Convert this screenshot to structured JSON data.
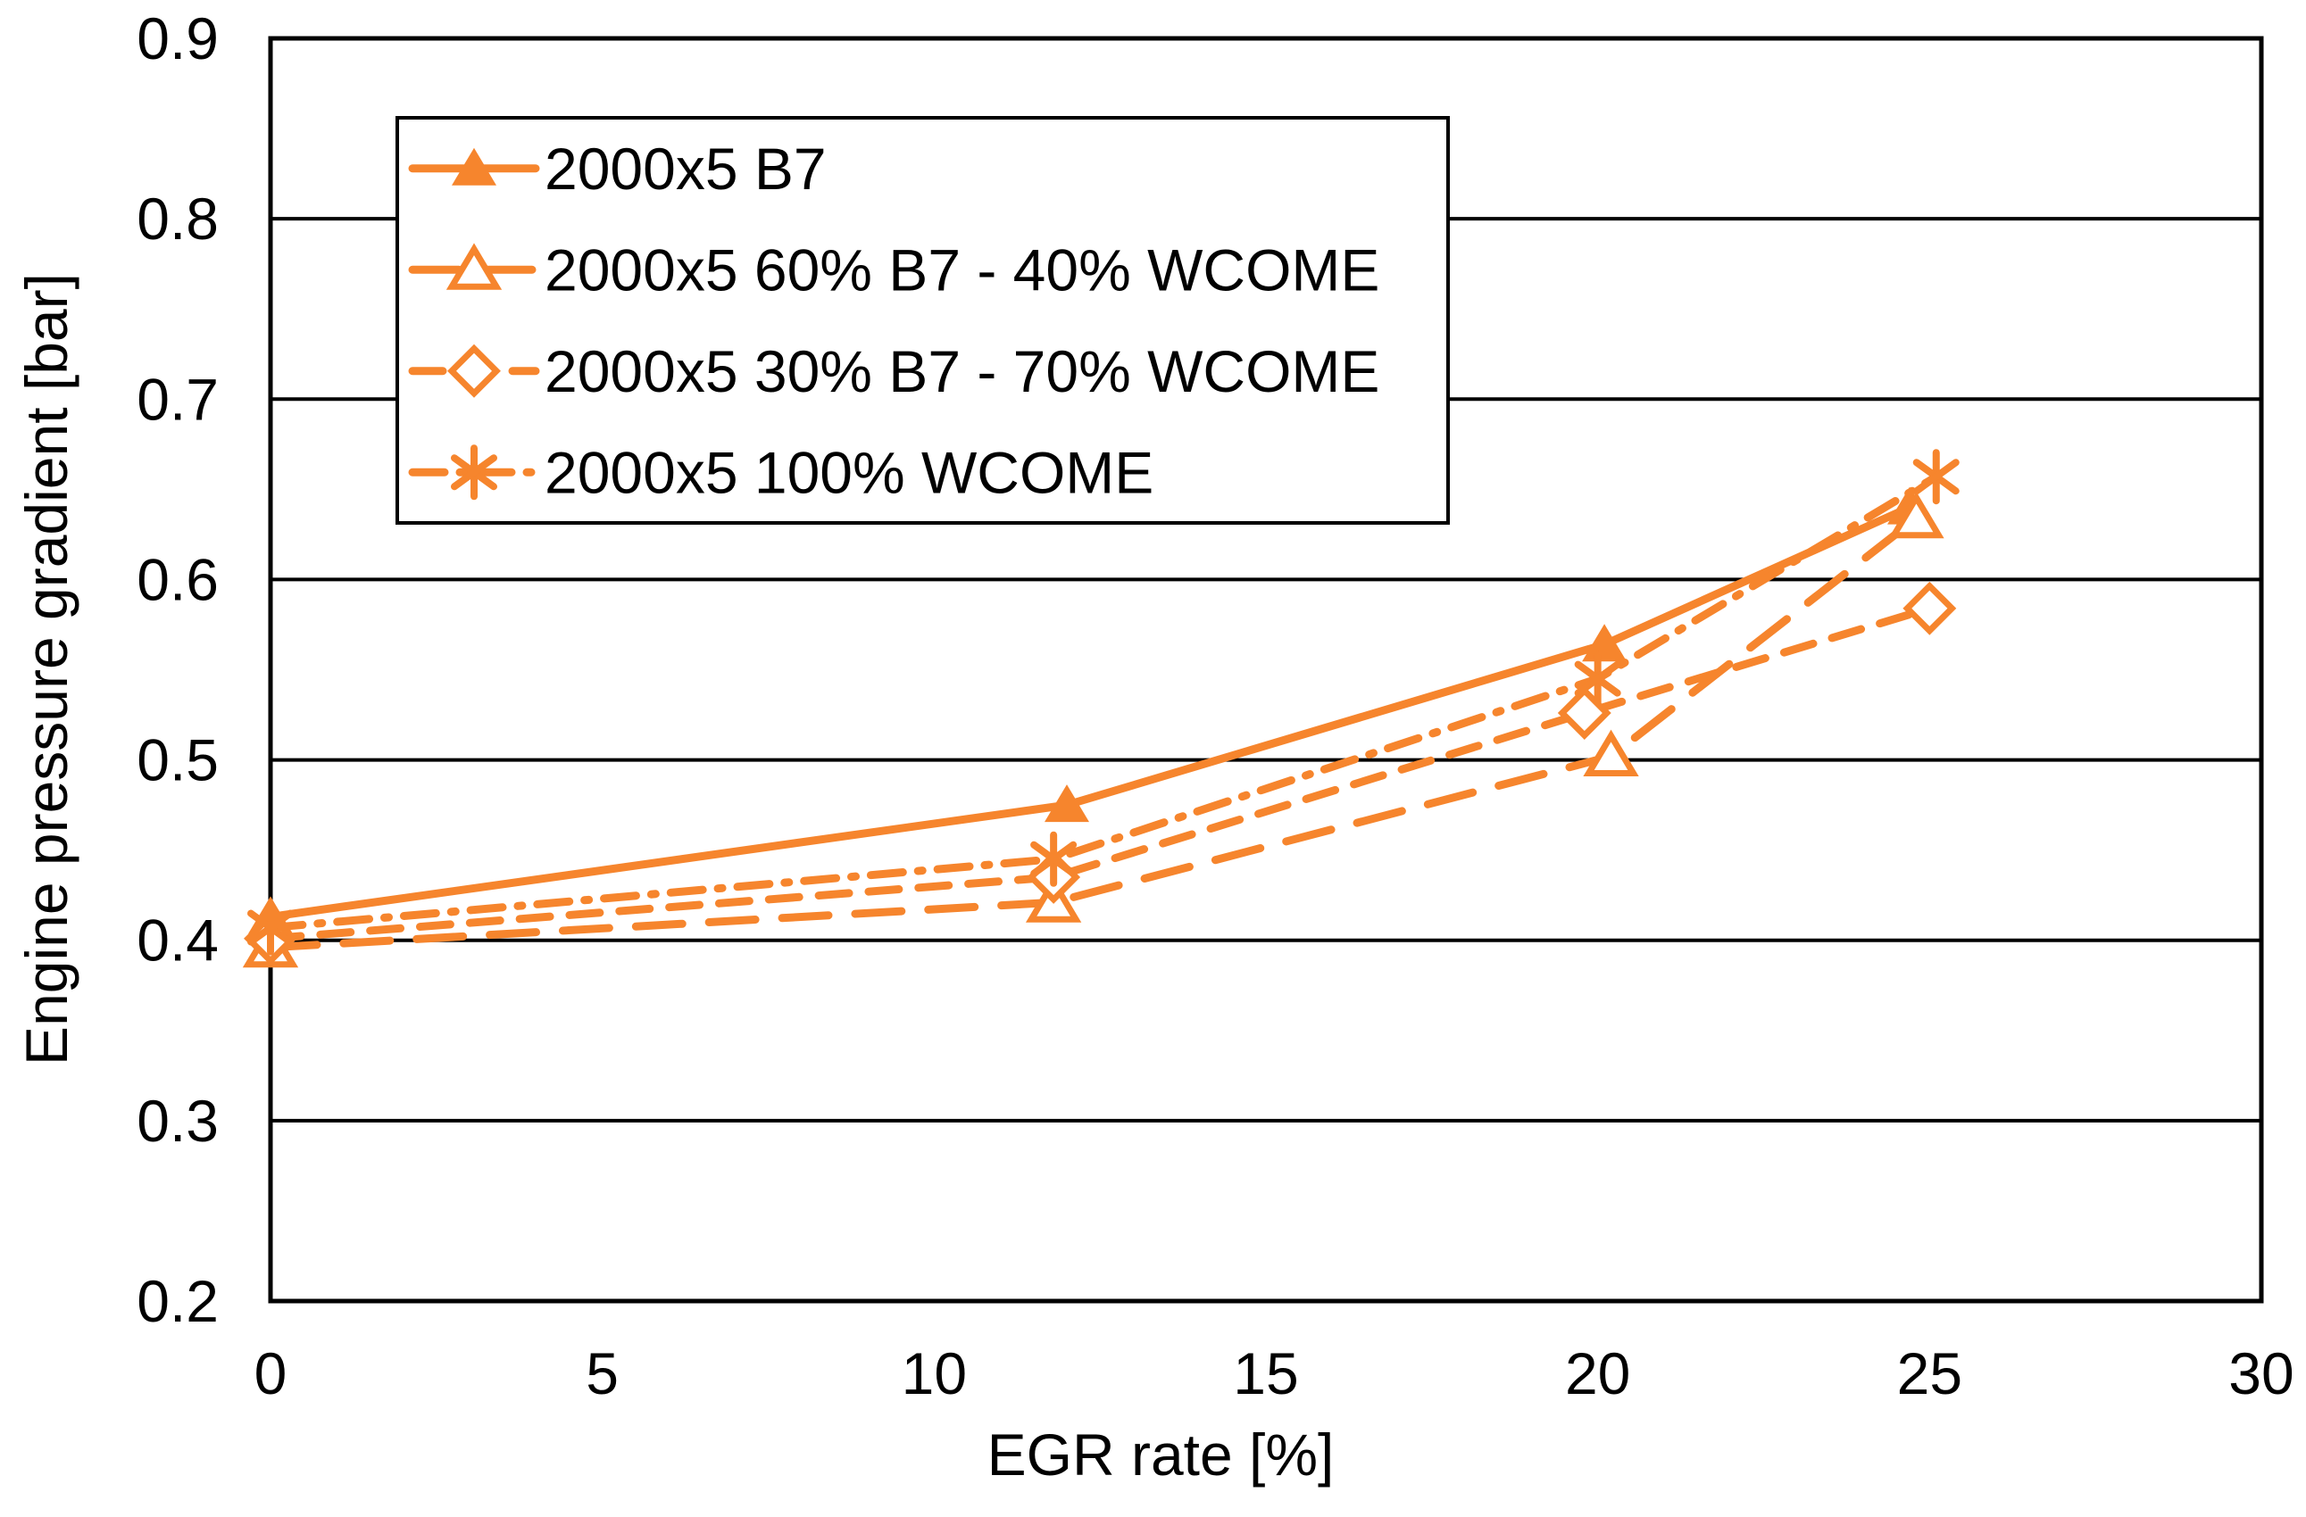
{
  "chart_data": {
    "type": "line",
    "title": "",
    "xlabel": "EGR rate [%]",
    "ylabel": "Engine pressure gradient [bar]",
    "xlim": [
      0,
      30
    ],
    "ylim": [
      0.2,
      0.9
    ],
    "xticks": [
      0,
      5,
      10,
      15,
      20,
      25,
      30
    ],
    "yticks": [
      0.2,
      0.3,
      0.4,
      0.5,
      0.6,
      0.7,
      0.8,
      0.9
    ],
    "grid": "horizontal-only",
    "legend_position": "top-left-inside",
    "accent_color": "#F6852D",
    "axis_color": "#000000",
    "background_color": "#FFFFFF",
    "series": [
      {
        "name": "2000x5 B7",
        "marker": "filled-triangle",
        "line_style": "solid",
        "x": [
          0,
          12.0,
          20.1,
          24.7
        ],
        "y": [
          0.413,
          0.475,
          0.564,
          0.64
        ]
      },
      {
        "name": "2000x5 60% B7 - 40% WCOME",
        "marker": "open-triangle",
        "line_style": "long-dash",
        "x": [
          0,
          11.8,
          20.2,
          24.8
        ],
        "y": [
          0.396,
          0.421,
          0.502,
          0.634
        ]
      },
      {
        "name": "2000x5 30% B7 - 70% WCOME",
        "marker": "open-diamond",
        "line_style": "dash",
        "x": [
          0,
          11.8,
          19.8,
          25.0
        ],
        "y": [
          0.401,
          0.435,
          0.526,
          0.584
        ]
      },
      {
        "name": "2000x5 100% WCOME",
        "marker": "asterisk",
        "line_style": "dash-dot",
        "x": [
          0,
          11.8,
          20.0,
          25.1
        ],
        "y": [
          0.407,
          0.445,
          0.545,
          0.657
        ]
      }
    ]
  }
}
